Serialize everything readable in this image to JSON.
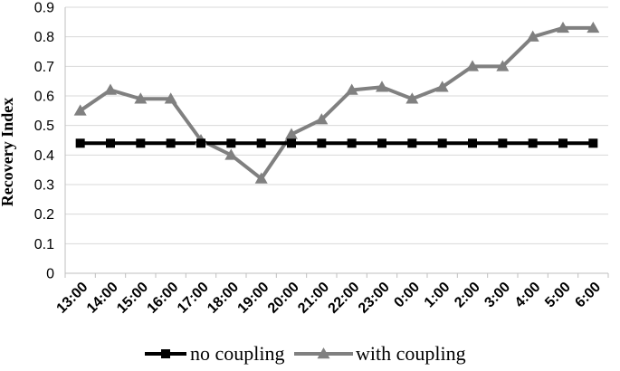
{
  "chart_data": {
    "type": "line",
    "ylabel": "Recovery Index",
    "xlabel": "",
    "ylim": [
      0,
      0.9
    ],
    "yticks": [
      "0",
      "0.1",
      "0.2",
      "0.3",
      "0.4",
      "0.5",
      "0.6",
      "0.7",
      "0.8",
      "0.9"
    ],
    "categories": [
      "13:00",
      "14:00",
      "15:00",
      "16:00",
      "17:00",
      "18:00",
      "19:00",
      "20:00",
      "21:00",
      "22:00",
      "23:00",
      "0:00",
      "1:00",
      "2:00",
      "3:00",
      "4:00",
      "5:00",
      "6:00"
    ],
    "grid": "horizontal",
    "legend_position": "bottom",
    "series": [
      {
        "name": "no coupling",
        "marker": "square",
        "color": "#000000",
        "values": [
          0.44,
          0.44,
          0.44,
          0.44,
          0.44,
          0.44,
          0.44,
          0.44,
          0.44,
          0.44,
          0.44,
          0.44,
          0.44,
          0.44,
          0.44,
          0.44,
          0.44,
          0.44
        ]
      },
      {
        "name": "with coupling",
        "marker": "triangle",
        "color": "#808080",
        "values": [
          0.55,
          0.62,
          0.59,
          0.59,
          0.45,
          0.4,
          0.32,
          0.47,
          0.52,
          0.62,
          0.63,
          0.59,
          0.63,
          0.7,
          0.7,
          0.8,
          0.83,
          0.83
        ]
      }
    ]
  }
}
